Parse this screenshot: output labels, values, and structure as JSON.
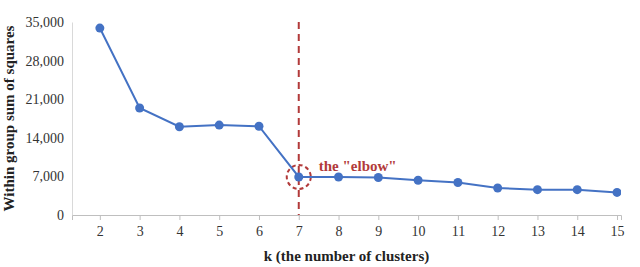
{
  "chart_data": {
    "type": "line",
    "x_label": "k (the number of clusters)",
    "y_label": "Within group sum of squares",
    "x": [
      2,
      3,
      4,
      5,
      6,
      7,
      8,
      9,
      10,
      11,
      12,
      13,
      14,
      15
    ],
    "values": [
      33900,
      19400,
      16000,
      16300,
      16100,
      6900,
      6900,
      6800,
      6300,
      5900,
      4900,
      4600,
      4600,
      4100
    ],
    "color": "#4472c4",
    "marker": "circle",
    "line_style": "solid",
    "xlim": [
      1.3,
      15.1
    ],
    "xticks": [
      2,
      3,
      4,
      5,
      6,
      7,
      8,
      9,
      10,
      11,
      12,
      13,
      14,
      15
    ],
    "ylim": [
      0,
      35000
    ],
    "yticks": [
      0,
      {
        "value": 7000,
        "label": "7,000"
      },
      {
        "value": 14000,
        "label": "14,000"
      },
      {
        "value": 21000,
        "label": "21,000"
      },
      {
        "value": 28000,
        "label": "28,000"
      },
      {
        "value": 35000,
        "label": "35,000"
      }
    ],
    "grid": false,
    "annotations": [
      {
        "text": "the \"elbow\"",
        "x": 7,
        "y": 6900,
        "color": "#b23a3a",
        "line_style": "dashed"
      }
    ]
  }
}
